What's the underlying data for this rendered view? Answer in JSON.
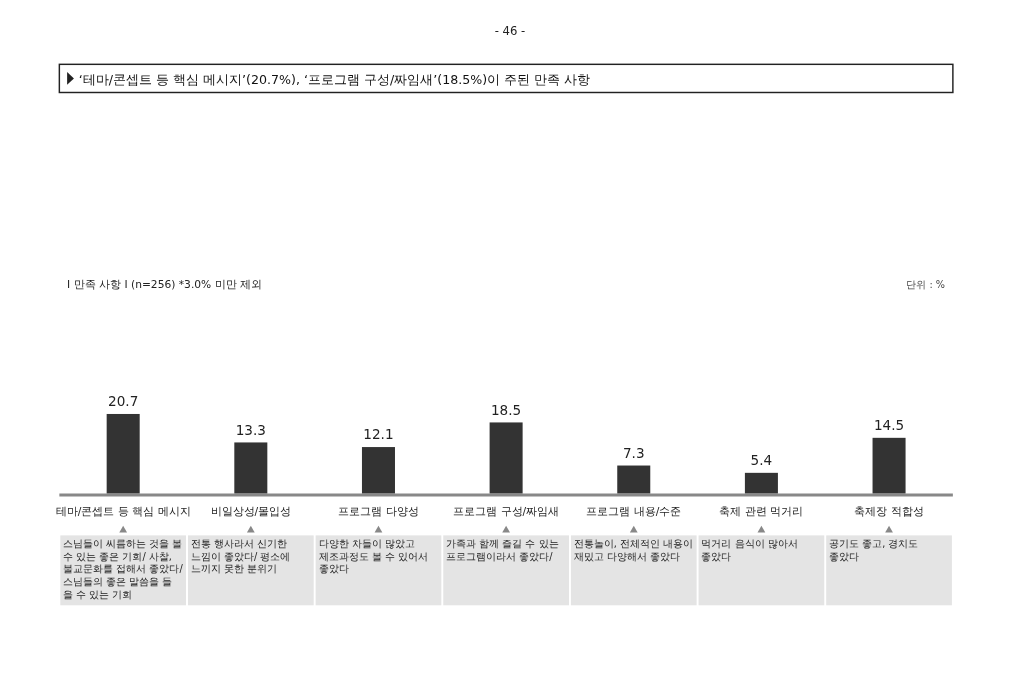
{
  "chart_data": {
    "type": "bar",
    "title": "‘테마/콘셉트 등 핵심 메시지’(20.7%), ‘프로그램 구성/짜임새’(18.5%)이 주된 만족 사항",
    "subtitle": "Ⅰ 만족 사항 Ⅰ (n=256) *3.0% 미만 제외",
    "categories": [
      "테마/콘셉트 등 핵심 메시지",
      "비일상성/몰입성",
      "프로그램 다양성",
      "프로그램 구성/짜임새",
      "프로그램 내용/수준",
      "축제 관련 먹거리",
      "축제장 적합성"
    ],
    "values": [
      20.7,
      13.3,
      12.1,
      18.5,
      7.3,
      5.4,
      14.5
    ],
    "color": "#333333",
    "data_labels": true,
    "annotations": [
      "- 46 -",
      "단위 : %",
      "스님들이 씨름하는 것을 볼 수 있는 좋은 기회/ 사찰, 불교문화를 접해서 좋았다/ 스님들의 좋은 말씀을 들 을 수 있는 기회",
      "전통 행사라서 신기한 느낌이 좋았다/ 평소에 느끼지 못한 분위기",
      "다양한 차들이 많았고 제조과정도 볼 수 있어서 좋았다",
      "가족과 함께 즐길 수 있는 프로그램이라서 좋았다/",
      "전통놀이, 전체적인 내용이 재밌고 다양해서 좋았다",
      "먹거리 음식이 많아서 좋았다",
      "공기도 좋고, 경치도 좋았다"
    ]
  }
}
